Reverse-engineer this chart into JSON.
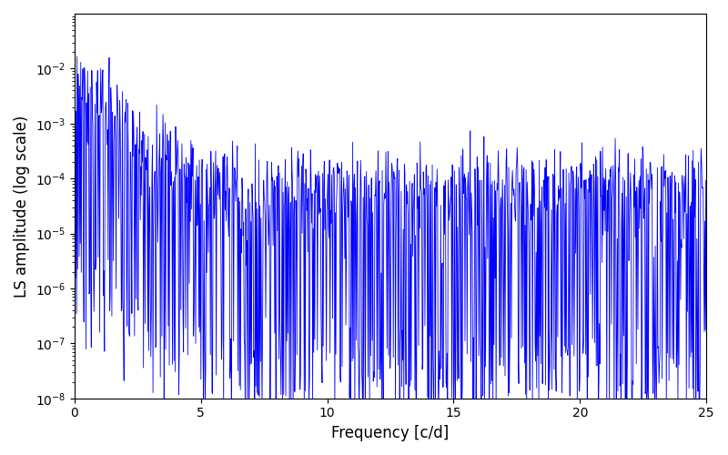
{
  "xlabel": "Frequency [c/d]",
  "ylabel": "LS amplitude (log scale)",
  "xlim": [
    0,
    25
  ],
  "ylim": [
    1e-08,
    0.1
  ],
  "line_color": "#0000ff",
  "line_width": 0.6,
  "background_color": "#ffffff",
  "figsize": [
    8.0,
    5.0
  ],
  "dpi": 100,
  "yticks": [
    1e-08,
    1e-07,
    1e-06,
    1e-05,
    0.0001,
    0.001,
    0.01
  ],
  "xticks": [
    0,
    5,
    10,
    15,
    20,
    25
  ],
  "N_points": 1200,
  "seed": 77,
  "envelope_base": 0.0001,
  "envelope_peak": 0.012,
  "envelope_decay": 1.2,
  "spike_depth_scale": 6.0
}
